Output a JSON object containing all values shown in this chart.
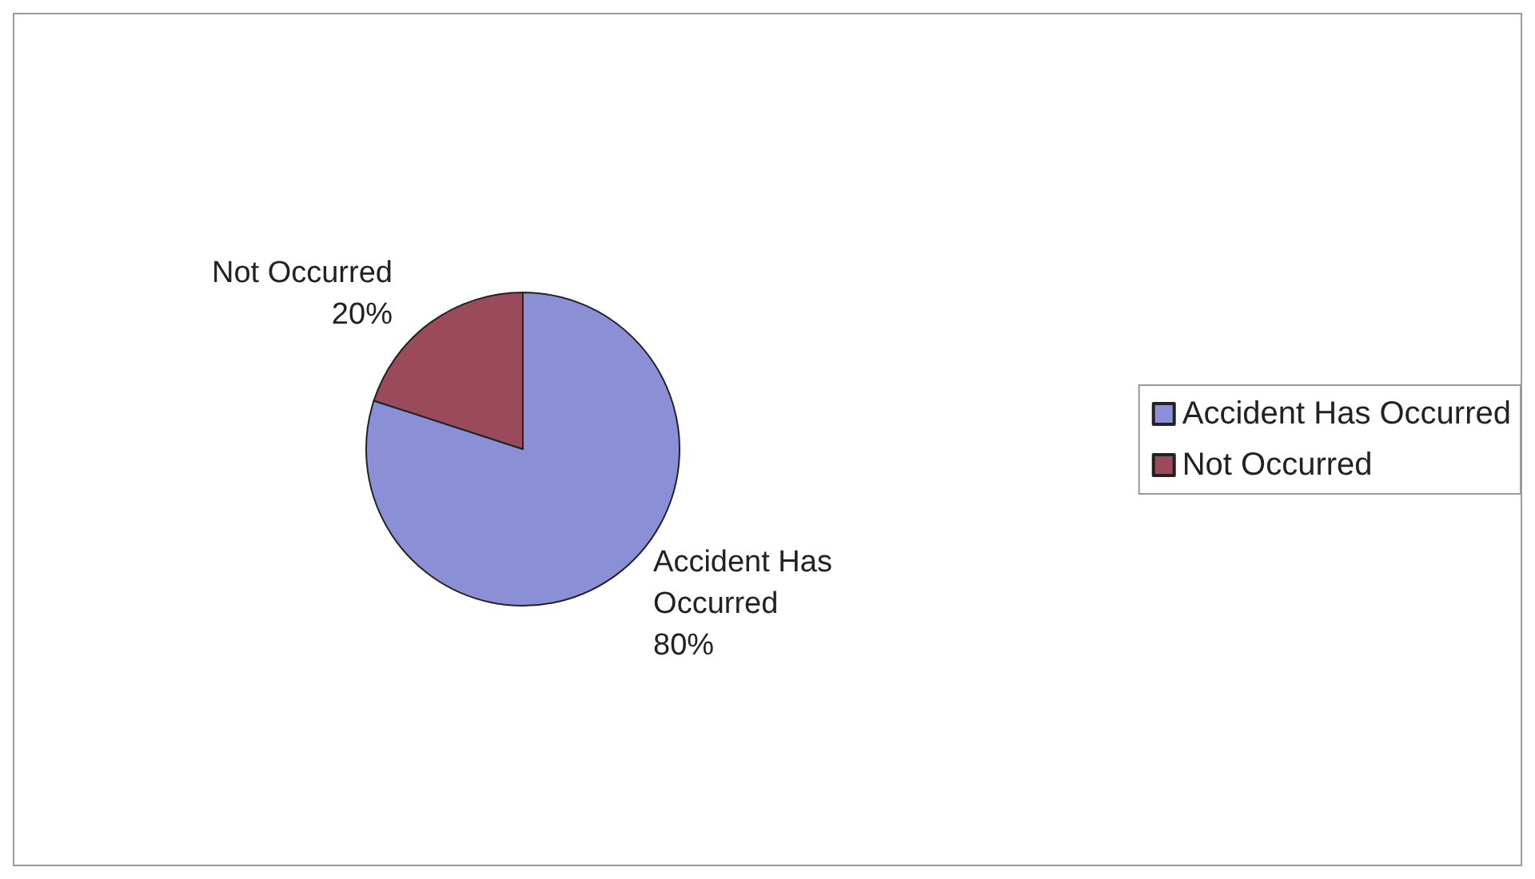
{
  "chart_data": {
    "type": "pie",
    "categories": [
      "Accident Has Occurred",
      "Not Occurred"
    ],
    "values": [
      80,
      20
    ],
    "value_labels": [
      "80%",
      "20%"
    ],
    "colors": [
      "#8b8fd6",
      "#9a4a5a"
    ],
    "legend": "right"
  }
}
